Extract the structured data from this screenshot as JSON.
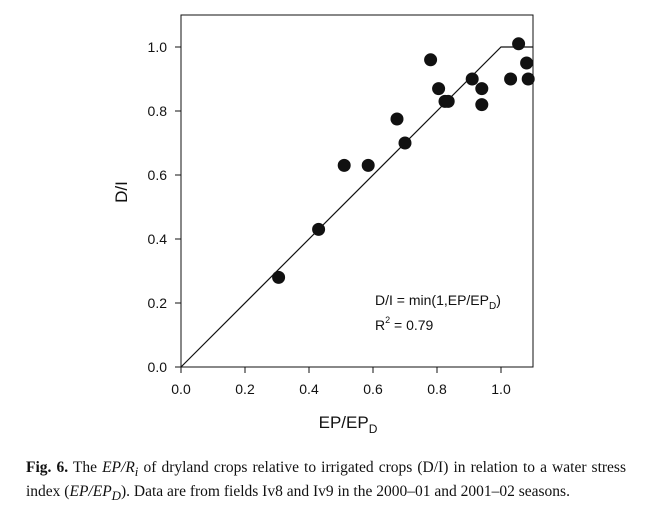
{
  "chart_data": {
    "type": "scatter",
    "title": "",
    "xlabel": {
      "text": "EP/EP",
      "sub": "D"
    },
    "ylabel": "D/I",
    "xlim": [
      0,
      1.1
    ],
    "ylim": [
      0,
      1.1
    ],
    "xticks": [
      "0.0",
      "0.2",
      "0.4",
      "0.6",
      "0.8",
      "1.0"
    ],
    "yticks": [
      "0.0",
      "0.2",
      "0.4",
      "0.6",
      "0.8",
      "1.0"
    ],
    "grid": false,
    "points": [
      {
        "x": 0.305,
        "y": 0.28
      },
      {
        "x": 0.43,
        "y": 0.43
      },
      {
        "x": 0.51,
        "y": 0.63
      },
      {
        "x": 0.585,
        "y": 0.63
      },
      {
        "x": 0.675,
        "y": 0.775
      },
      {
        "x": 0.7,
        "y": 0.7
      },
      {
        "x": 0.78,
        "y": 0.96
      },
      {
        "x": 0.805,
        "y": 0.87
      },
      {
        "x": 0.825,
        "y": 0.83
      },
      {
        "x": 0.835,
        "y": 0.83
      },
      {
        "x": 0.91,
        "y": 0.9
      },
      {
        "x": 0.94,
        "y": 0.87
      },
      {
        "x": 0.94,
        "y": 0.82
      },
      {
        "x": 1.03,
        "y": 0.9
      },
      {
        "x": 1.055,
        "y": 1.01
      },
      {
        "x": 1.08,
        "y": 0.95
      },
      {
        "x": 1.085,
        "y": 0.9
      }
    ],
    "fit_line": [
      {
        "x": 0.0,
        "y": 0.0
      },
      {
        "x": 1.0,
        "y": 1.0
      },
      {
        "x": 1.1,
        "y": 1.0
      }
    ],
    "annotations": {
      "equation": {
        "main": "D/I = min(1,EP/EP",
        "sub": "D",
        "close": ")"
      },
      "r2": {
        "base": "R",
        "sup": "2",
        "rest": " = 0.79"
      }
    }
  },
  "caption": {
    "label": "Fig. 6.",
    "t1": " The ",
    "i1": "EP/R",
    "i1sub": "i",
    "t2": " of dryland crops relative to irrigated crops (D/I) in relation to a water stress index (",
    "i2": "EP/EP",
    "i2sub": "D",
    "t3": "). Data are from fields Iv8 and Iv9 in the 2000–01 and 2001–02 seasons."
  }
}
